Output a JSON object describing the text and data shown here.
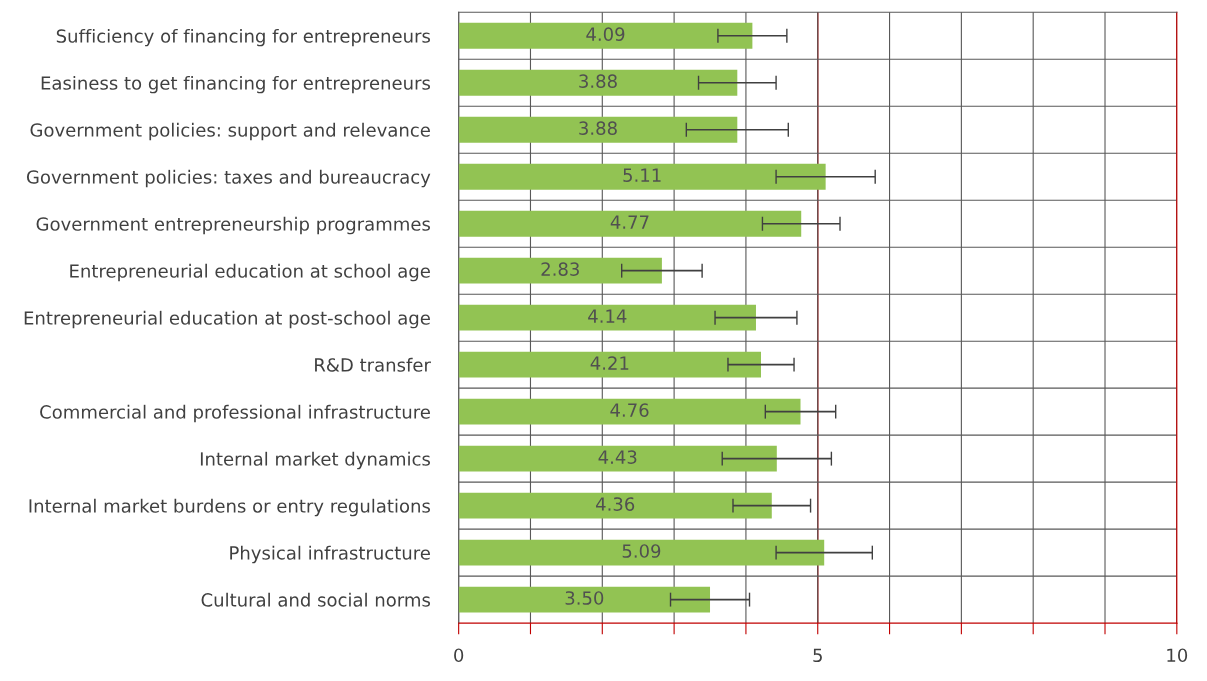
{
  "chart_data": {
    "type": "bar",
    "orientation": "horizontal",
    "categories": [
      "Sufficiency of financing for entrepreneurs",
      "Easiness to get financing for entrepreneurs",
      "Government policies: support and relevance",
      "Government policies: taxes and bureaucracy",
      "Government entrepreneurship programmes",
      "Entrepreneurial education at school age",
      "Entrepreneurial education at post-school age",
      "R&D transfer",
      "Commercial and professional infrastructure",
      "Internal market dynamics",
      "Internal market burdens or entry regulations",
      "Physical infrastructure",
      "Cultural and social norms"
    ],
    "values": [
      4.09,
      3.88,
      3.88,
      5.11,
      4.77,
      2.83,
      4.14,
      4.21,
      4.76,
      4.43,
      4.36,
      5.09,
      3.5
    ],
    "value_labels": [
      "4.09",
      "3.88",
      "3.88",
      "5.11",
      "4.77",
      "2.83",
      "4.14",
      "4.21",
      "4.76",
      "4.43",
      "4.36",
      "5.09",
      "3.50"
    ],
    "errors": [
      0.48,
      0.54,
      0.71,
      0.69,
      0.54,
      0.56,
      0.57,
      0.46,
      0.49,
      0.76,
      0.54,
      0.67,
      0.55
    ],
    "color": "#92c353",
    "xlim": [
      0,
      10
    ],
    "xticks": [
      0,
      {
        "value": 1,
        "label": null
      },
      {
        "value": 2,
        "label": null
      },
      {
        "value": 3,
        "label": null
      },
      {
        "value": 4,
        "label": null
      },
      5,
      {
        "value": 6,
        "label": null
      },
      {
        "value": 7,
        "label": null
      },
      {
        "value": 8,
        "label": null
      },
      {
        "value": 9,
        "label": null
      },
      10
    ],
    "ref_lines": [
      {
        "axis": "x",
        "value": 5,
        "color": "#c00000"
      },
      {
        "axis": "x",
        "value": 10,
        "color": "#c00000"
      }
    ],
    "grid": true,
    "legend": false
  }
}
